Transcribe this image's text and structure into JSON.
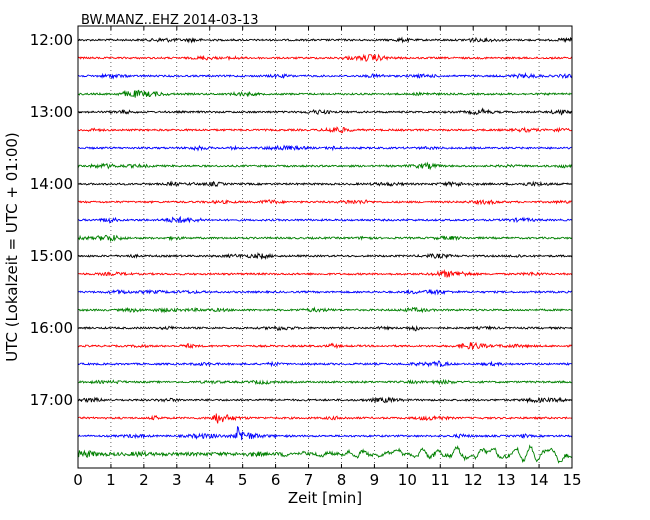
{
  "chart_data": {
    "type": "line",
    "title": "BW.MANZ..EHZ 2014-03-13",
    "xlabel": "Zeit  [min]",
    "ylabel": "UTC (Lokalzeit = UTC + 01:00)",
    "xlim": [
      0,
      15
    ],
    "x_ticks": [
      "0",
      "1",
      "2",
      "3",
      "4",
      "5",
      "6",
      "7",
      "8",
      "9",
      "10",
      "11",
      "12",
      "13",
      "14",
      "15"
    ],
    "y_tick_labels": [
      "12:00",
      "13:00",
      "14:00",
      "15:00",
      "16:00",
      "17:00"
    ],
    "trace_start_times": [
      "12:00",
      "12:15",
      "12:30",
      "12:45",
      "13:00",
      "13:15",
      "13:30",
      "13:45",
      "14:00",
      "14:15",
      "14:30",
      "14:45",
      "15:00",
      "15:15",
      "15:30",
      "15:45",
      "16:00",
      "16:15",
      "16:30",
      "16:45",
      "17:00",
      "17:15",
      "17:30",
      "17:45"
    ],
    "trace_duration_min": 15,
    "color_cycle": [
      "#000000",
      "#ff0000",
      "#0000ff",
      "#008000"
    ],
    "grid": "vertical dotted lines at each minute",
    "events": [
      {
        "trace_start": "17:15",
        "x_min": 4.1,
        "relative_amplitude": 2.5
      },
      {
        "trace_start": "17:30",
        "x_min": 4.8,
        "relative_amplitude": 4.0
      },
      {
        "trace_start": "17:45",
        "x_min_range": [
          10,
          15
        ],
        "relative_amplitude": 3.5
      }
    ]
  }
}
